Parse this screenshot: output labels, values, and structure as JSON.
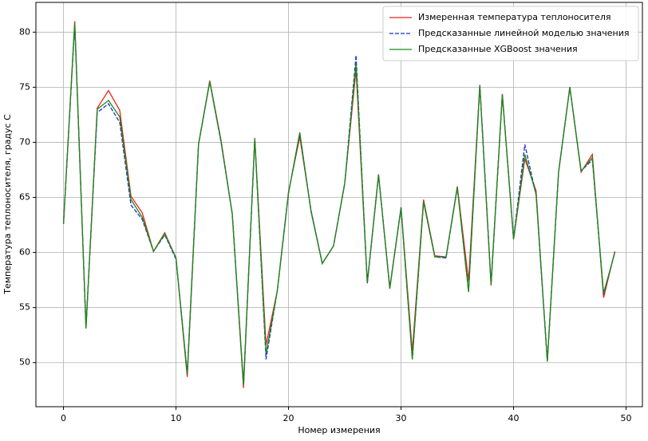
{
  "chart_data": {
    "type": "line",
    "xlabel": "Номер измерения",
    "ylabel": "Температура теплоносителя, градус С",
    "x": [
      0,
      1,
      2,
      3,
      4,
      5,
      6,
      7,
      8,
      9,
      10,
      11,
      12,
      13,
      14,
      15,
      16,
      17,
      18,
      19,
      20,
      21,
      22,
      23,
      24,
      25,
      26,
      27,
      28,
      29,
      30,
      31,
      32,
      33,
      34,
      35,
      36,
      37,
      38,
      39,
      40,
      41,
      42,
      43,
      44,
      45,
      46,
      47,
      48,
      49
    ],
    "series": [
      {
        "name": "Измеренная температура теплоносителя",
        "color": "#e8251c",
        "dash": false,
        "values": [
          62.6,
          81.0,
          53.1,
          73.1,
          74.7,
          72.9,
          65.1,
          63.6,
          60.1,
          61.8,
          59.5,
          48.7,
          69.8,
          75.6,
          70.2,
          63.5,
          47.7,
          70.4,
          51.6,
          56.5,
          65.5,
          70.5,
          63.8,
          59.0,
          60.6,
          66.3,
          76.6,
          57.2,
          67.1,
          56.7,
          64.1,
          51.0,
          64.8,
          59.7,
          59.6,
          66.0,
          57.4,
          75.2,
          57.0,
          74.4,
          61.2,
          68.5,
          65.6,
          50.1,
          67.3,
          75.0,
          67.3,
          68.9,
          55.9,
          60.1
        ]
      },
      {
        "name": "Предсказанные линейной моделью значения",
        "color": "#1f2fc9",
        "dash": true,
        "values": [
          62.6,
          80.7,
          53.2,
          72.7,
          73.5,
          71.8,
          64.3,
          63.0,
          60.1,
          61.6,
          59.4,
          49.0,
          69.8,
          75.5,
          70.0,
          63.5,
          48.0,
          70.3,
          50.3,
          56.5,
          65.4,
          70.8,
          63.8,
          59.0,
          60.6,
          66.3,
          77.9,
          57.2,
          67.0,
          56.8,
          64.1,
          50.3,
          64.6,
          59.6,
          59.5,
          65.9,
          56.5,
          75.2,
          57.2,
          74.3,
          61.3,
          69.8,
          65.2,
          50.2,
          67.3,
          75.0,
          67.4,
          68.4,
          56.2,
          60.0
        ]
      },
      {
        "name": "Предсказанные XGBoost значения",
        "color": "#1a8a1a",
        "dash": false,
        "values": [
          62.6,
          80.8,
          53.1,
          73.0,
          73.8,
          72.3,
          64.8,
          63.2,
          60.1,
          61.7,
          59.5,
          49.0,
          69.8,
          75.5,
          70.1,
          63.5,
          48.0,
          70.3,
          50.8,
          56.5,
          65.4,
          70.9,
          63.7,
          59.0,
          60.6,
          66.3,
          77.2,
          57.3,
          67.0,
          56.8,
          64.0,
          50.3,
          64.6,
          59.6,
          59.6,
          65.9,
          56.4,
          75.1,
          57.1,
          74.3,
          61.2,
          68.9,
          65.3,
          50.1,
          67.3,
          75.0,
          67.4,
          68.6,
          56.3,
          60.0
        ]
      }
    ],
    "xlim": [
      -2.45,
      51.45
    ],
    "xticks": [
      0,
      10,
      20,
      30,
      40,
      50
    ],
    "ylim": [
      46,
      82.7
    ],
    "yticks": [
      50,
      55,
      60,
      65,
      70,
      75,
      80
    ],
    "grid": true,
    "legend": "upper right"
  }
}
